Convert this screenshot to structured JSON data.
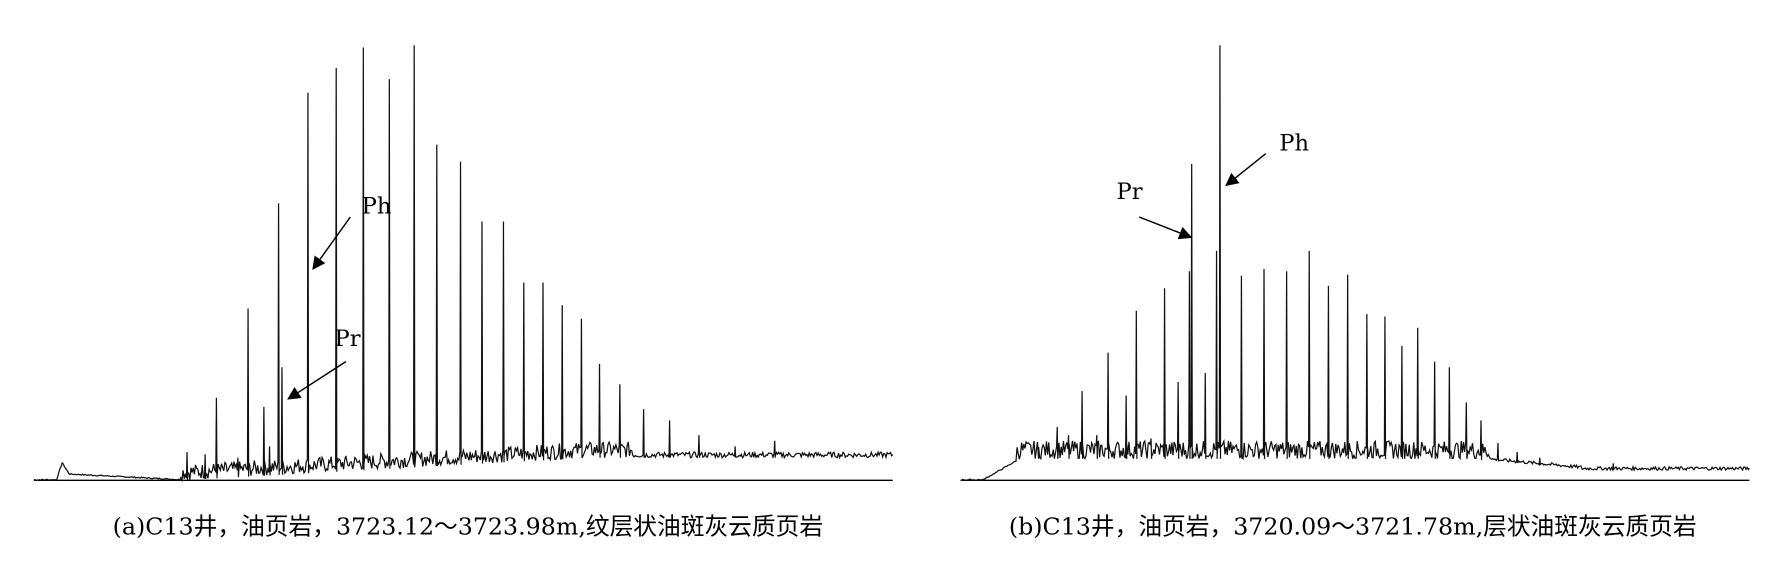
{
  "panels": [
    {
      "caption": "(a)C13井，油页岩，3723.12～3723.98m,纹层状油斑灰云质页岩",
      "peak_labels": {
        "pr": "Pr",
        "ph": "Ph"
      }
    },
    {
      "caption": "(b)C13井，油页岩，3720.09～3721.78m,层状油斑灰云质页岩",
      "peak_labels": {
        "pr": "Pr",
        "ph": "Ph"
      }
    }
  ]
}
